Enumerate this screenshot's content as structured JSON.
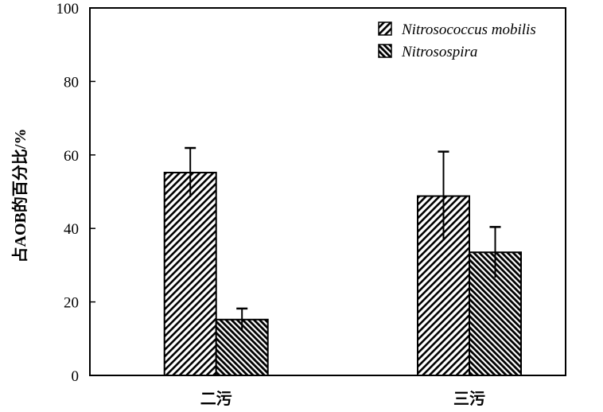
{
  "chart_data": {
    "type": "bar",
    "title": "",
    "xlabel": "",
    "ylabel": "占AOB的百分比/%",
    "ylim": [
      0,
      100
    ],
    "yticks": [
      0,
      20,
      40,
      60,
      80,
      100
    ],
    "categories": [
      "二污",
      "三污"
    ],
    "series": [
      {
        "name": "Nitrosococcus mobilis",
        "pattern": "diagonal-down",
        "values": [
          55.2,
          48.8
        ],
        "errors": [
          6.7,
          12.1
        ]
      },
      {
        "name": "Nitrosospira",
        "pattern": "diagonal-up-dense",
        "values": [
          15.2,
          33.5
        ],
        "errors": [
          3.0,
          6.9
        ]
      }
    ],
    "legend_position": "top-right",
    "grid": false,
    "colors": {
      "bar_stroke": "#000000",
      "hatch": "#000000",
      "background": "#ffffff"
    }
  }
}
